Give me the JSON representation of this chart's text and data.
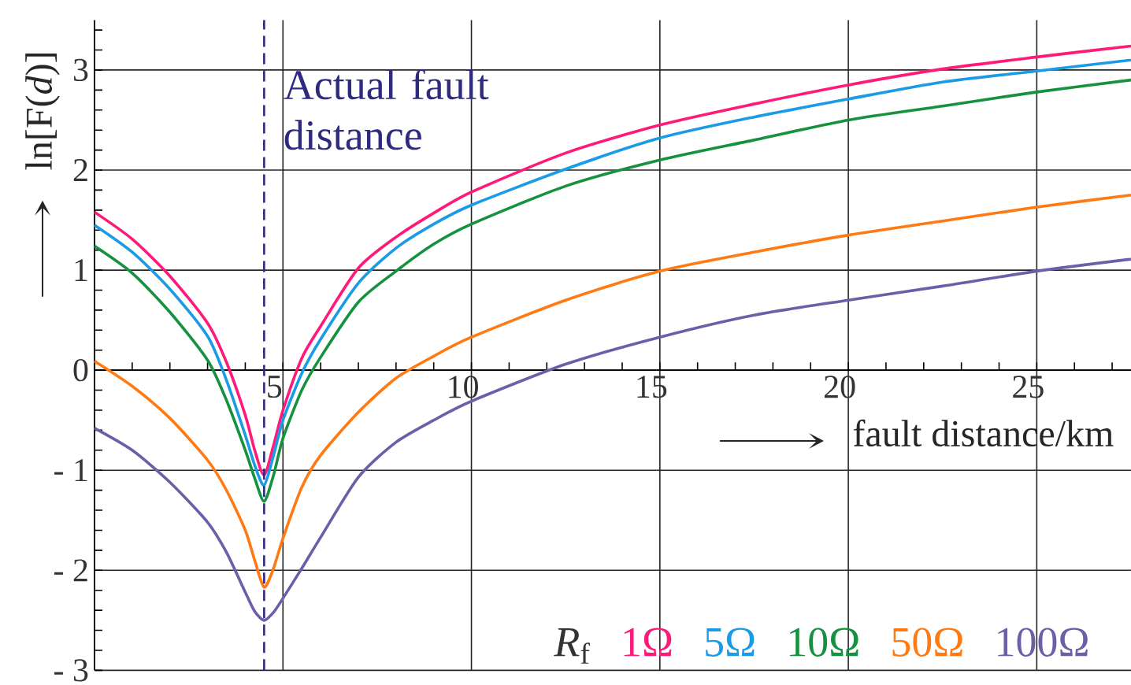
{
  "chart_data": {
    "type": "line",
    "xlabel": "fault distance/km",
    "ylabel": "ln[F(*d*)]",
    "legend_title": "*R*$_{f}$",
    "x": [
      0,
      1,
      2,
      3,
      3.5,
      4,
      4.25,
      4.5,
      4.75,
      5,
      5.5,
      6,
      7,
      8,
      9,
      10,
      12.5,
      15,
      17.5,
      20,
      22.5,
      25,
      27.5
    ],
    "series": [
      {
        "name": "1Ω",
        "color": "#ff1a7a",
        "values": [
          1.58,
          1.31,
          0.94,
          0.47,
          0.08,
          -0.45,
          -0.8,
          -1.05,
          -0.75,
          -0.4,
          0.12,
          0.44,
          1.02,
          1.33,
          1.57,
          1.78,
          2.17,
          2.45,
          2.66,
          2.85,
          3.01,
          3.13,
          3.24
        ]
      },
      {
        "name": "5Ω",
        "color": "#1b9ae6",
        "values": [
          1.45,
          1.18,
          0.81,
          0.34,
          -0.1,
          -0.65,
          -0.95,
          -1.15,
          -0.85,
          -0.5,
          -0.03,
          0.31,
          0.87,
          1.22,
          1.46,
          1.65,
          2.01,
          2.32,
          2.53,
          2.71,
          2.88,
          2.99,
          3.1
        ]
      },
      {
        "name": "10Ω",
        "color": "#15913f",
        "values": [
          1.24,
          0.97,
          0.58,
          0.1,
          -0.3,
          -0.8,
          -1.08,
          -1.31,
          -1.05,
          -0.68,
          -0.2,
          0.13,
          0.68,
          0.99,
          1.26,
          1.46,
          1.84,
          2.1,
          2.3,
          2.5,
          2.64,
          2.78,
          2.9
        ]
      },
      {
        "name": "50Ω",
        "color": "#ff7a12",
        "values": [
          0.09,
          -0.16,
          -0.48,
          -0.9,
          -1.2,
          -1.6,
          -1.9,
          -2.17,
          -1.98,
          -1.68,
          -1.17,
          -0.85,
          -0.42,
          -0.08,
          0.14,
          0.33,
          0.7,
          0.99,
          1.18,
          1.35,
          1.49,
          1.63,
          1.75
        ]
      },
      {
        "name": "100Ω",
        "color": "#6e5ea8",
        "values": [
          -0.58,
          -0.8,
          -1.12,
          -1.52,
          -1.82,
          -2.22,
          -2.41,
          -2.5,
          -2.42,
          -2.28,
          -1.98,
          -1.67,
          -1.07,
          -0.72,
          -0.5,
          -0.31,
          0.06,
          0.33,
          0.55,
          0.7,
          0.84,
          0.99,
          1.11
        ]
      }
    ],
    "xlim": [
      0,
      27.5
    ],
    "xticks": [
      5,
      10,
      15,
      20,
      25
    ],
    "ylim": [
      -3,
      3.5
    ],
    "yticks": [
      {
        "value": -3,
        "label": "- 3"
      },
      {
        "value": -2,
        "label": "- 2"
      },
      {
        "value": -1,
        "label": "- 1"
      },
      0,
      1,
      2,
      3
    ],
    "ref_lines": [
      {
        "axis": "x",
        "value": 4.5,
        "label": "Actual fault distance",
        "color": "#2e2a80",
        "line_style": "dashed"
      }
    ],
    "grid": true,
    "legend": "bottom right",
    "marker": "none",
    "line_style": "solid"
  }
}
